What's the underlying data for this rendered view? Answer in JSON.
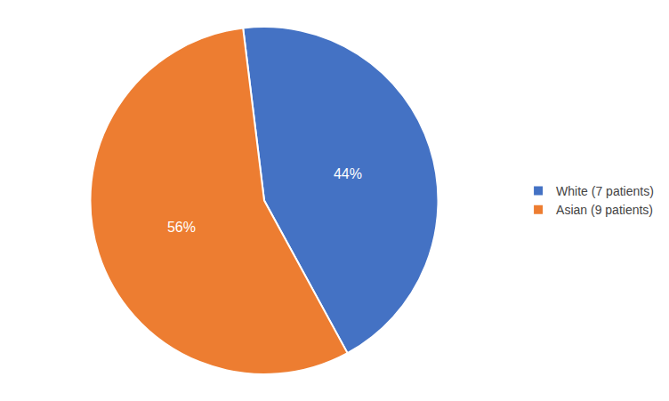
{
  "chart_data": {
    "type": "pie",
    "categories": [
      "White (7 patients)",
      "Asian (9 patients)"
    ],
    "values": [
      44,
      56
    ],
    "value_labels": [
      "44%",
      "56%"
    ],
    "data_labels": true,
    "colors": [
      "#4472C4",
      "#ED7D31"
    ],
    "legend": "right"
  }
}
